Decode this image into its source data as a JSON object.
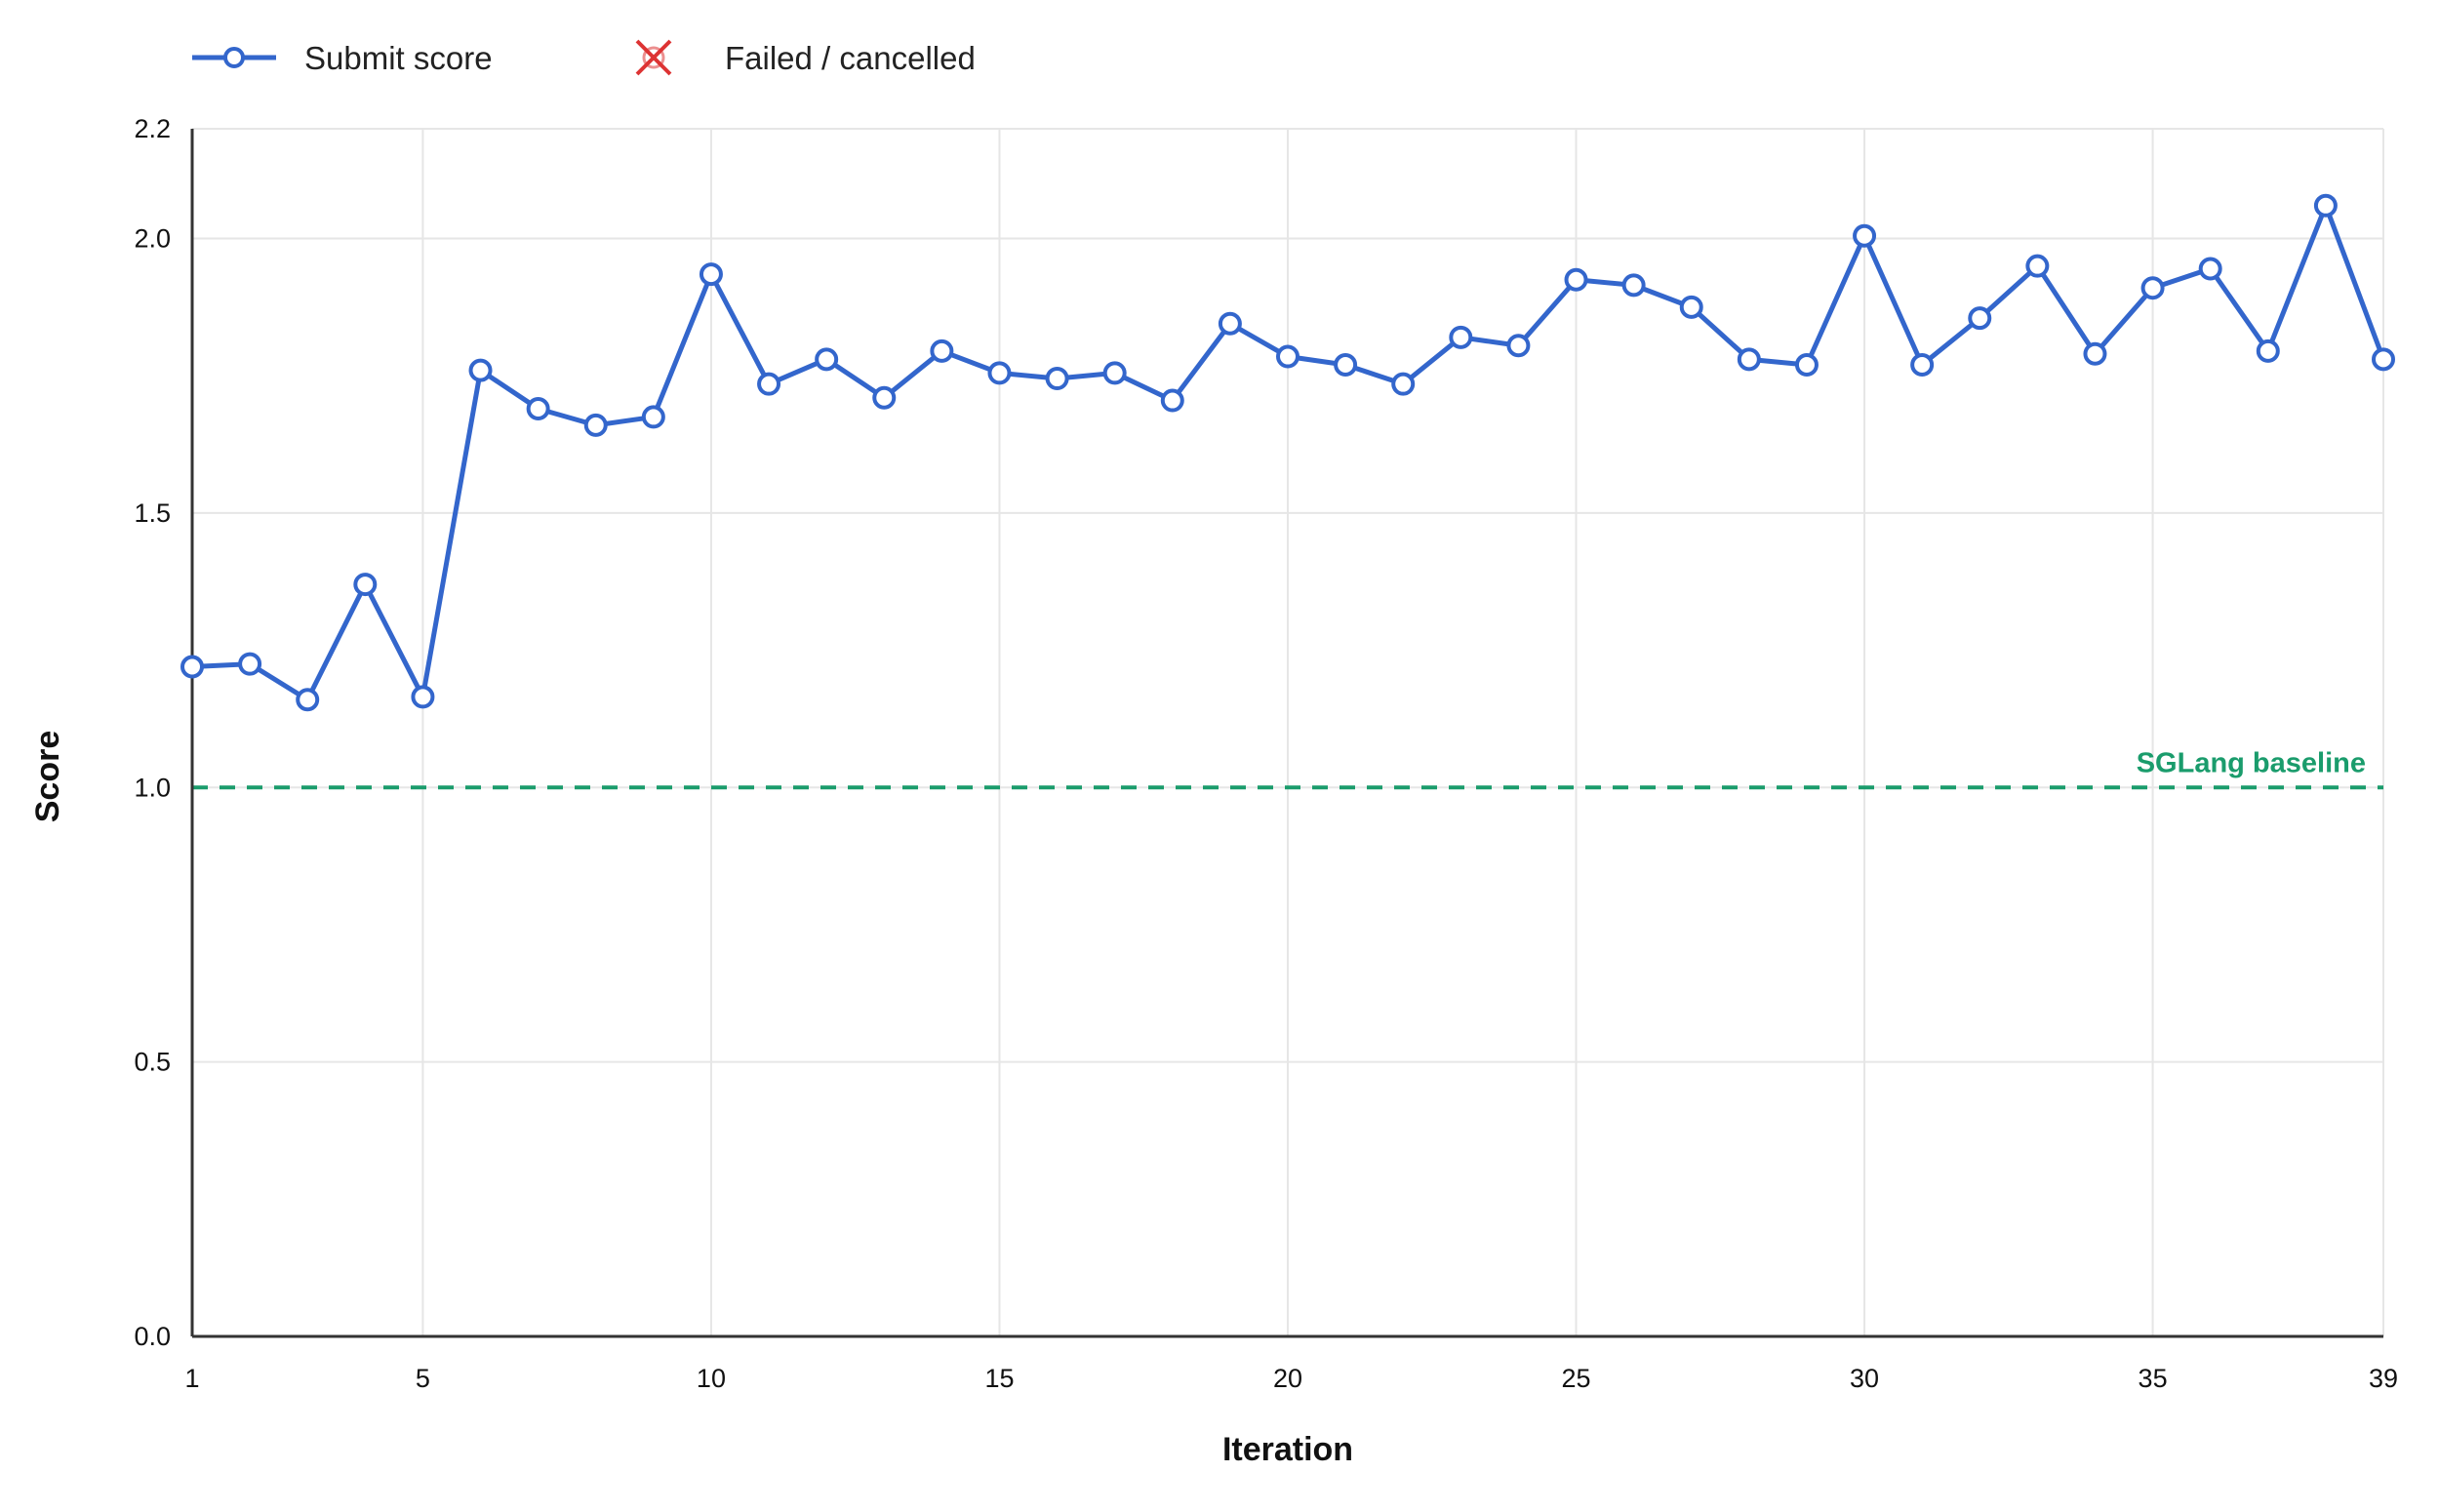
{
  "chart_data": {
    "type": "line",
    "title": "",
    "xlabel": "Iteration",
    "ylabel": "Score",
    "xlim": [
      1,
      39
    ],
    "ylim": [
      0,
      2.2
    ],
    "x_ticks": [
      1,
      5,
      10,
      15,
      20,
      25,
      30,
      35,
      39
    ],
    "y_ticks": [
      0.0,
      0.5,
      1.0,
      1.5,
      2.0,
      2.2
    ],
    "y_tick_labels": [
      "0.0",
      "0.5",
      "1.0",
      "1.5",
      "2.0",
      "2.2"
    ],
    "grid": true,
    "legend": {
      "placement": "top-left",
      "entries": [
        {
          "label": "Submit score",
          "marker": "circle-line",
          "color": "#3366cc"
        },
        {
          "label": "Failed / cancelled",
          "marker": "x-cross",
          "color": "#dd3333"
        }
      ]
    },
    "series": [
      {
        "name": "Submit score",
        "color": "#3366cc",
        "x": [
          1,
          2,
          3,
          4,
          5,
          6,
          7,
          8,
          9,
          10,
          11,
          12,
          13,
          14,
          15,
          16,
          17,
          18,
          19,
          20,
          21,
          22,
          23,
          24,
          25,
          26,
          27,
          28,
          29,
          30,
          31,
          32,
          33,
          34,
          35,
          36,
          37,
          38,
          39
        ],
        "values": [
          1.22,
          1.225,
          1.16,
          1.37,
          1.165,
          1.76,
          1.69,
          1.66,
          1.675,
          1.935,
          1.735,
          1.78,
          1.71,
          1.795,
          1.755,
          1.745,
          1.755,
          1.705,
          1.845,
          1.785,
          1.77,
          1.735,
          1.82,
          1.805,
          1.925,
          1.915,
          1.875,
          1.78,
          1.77,
          2.005,
          1.77,
          1.855,
          1.95,
          1.79,
          1.91,
          1.945,
          1.795,
          2.06,
          1.78
        ]
      }
    ],
    "reference_lines": [
      {
        "y": 1.0,
        "label": "SGLang baseline",
        "color": "#1a9c6c",
        "style": "dashed"
      }
    ]
  }
}
